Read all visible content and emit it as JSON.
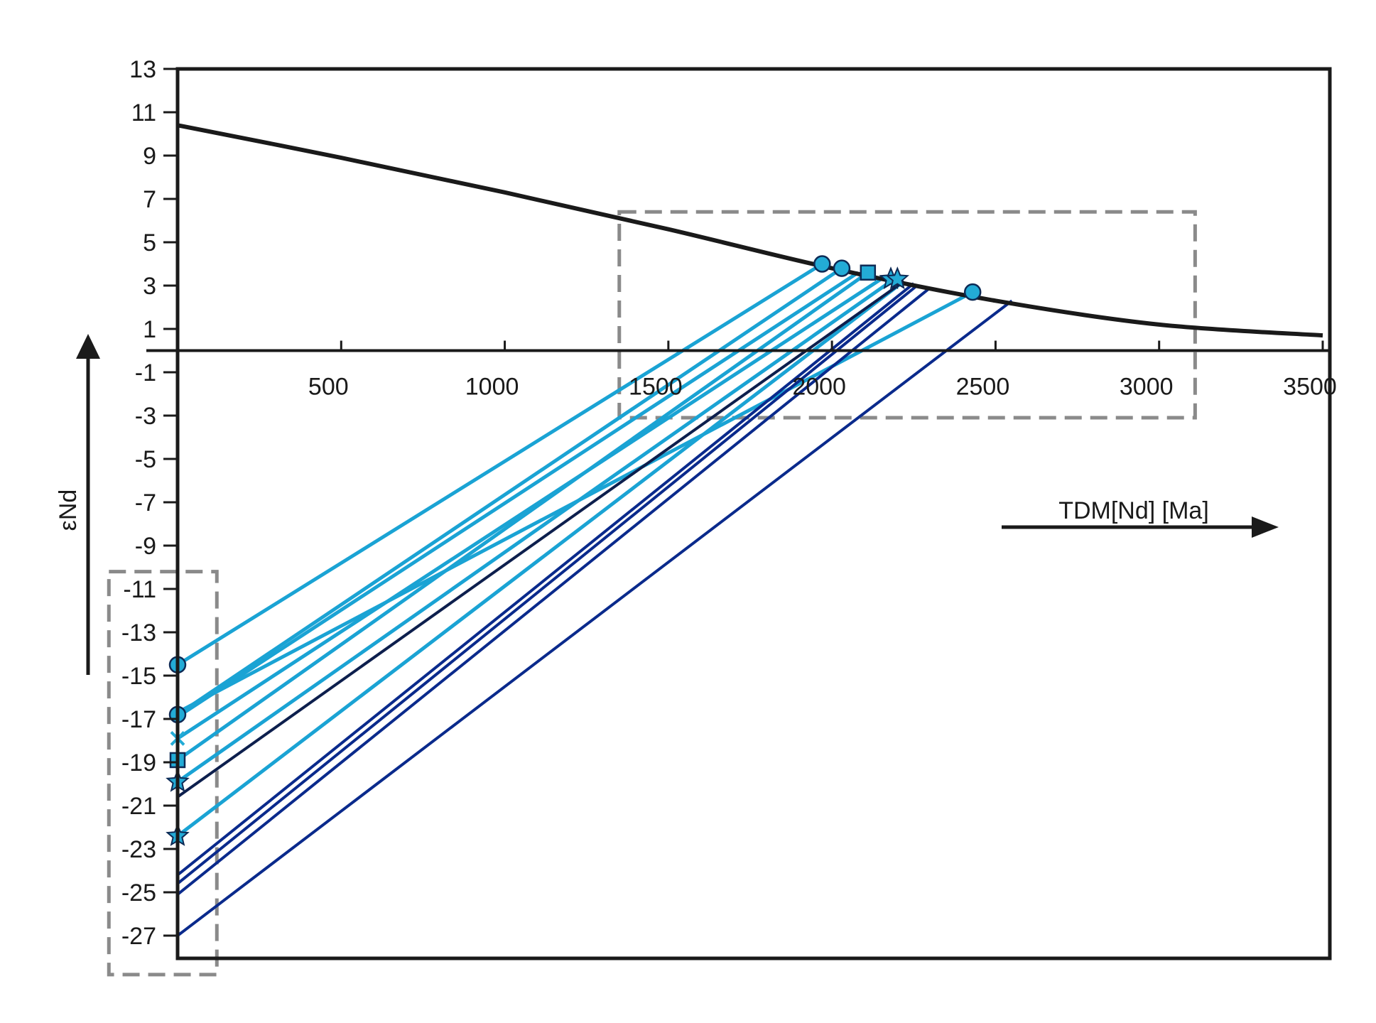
{
  "chart_data": {
    "type": "line",
    "xlabel": "TDM[Nd] [Ma]",
    "ylabel": "εNd",
    "xlim": [
      0,
      3500
    ],
    "ylim": [
      -28.5,
      13
    ],
    "x_ticks": [
      500,
      1000,
      1500,
      2000,
      2500,
      3000,
      3500
    ],
    "y_ticks": [
      13,
      11,
      9,
      7,
      5,
      3,
      1,
      -1,
      -3,
      -5,
      -7,
      -9,
      -11,
      -13,
      -15,
      -17,
      -19,
      -21,
      -23,
      -25,
      -27
    ],
    "grid": false,
    "legend": "none",
    "depleted_mantle_curve": {
      "x": [
        0,
        500,
        1000,
        1500,
        2000,
        2500,
        3000,
        3500
      ],
      "y": [
        10.4,
        8.9,
        7.3,
        5.6,
        3.8,
        2.3,
        1.2,
        0.7
      ],
      "color": "#1a1a1a"
    },
    "model_age_lines": [
      {
        "x": [
          0,
          1970
        ],
        "y": [
          -14.5,
          4.0
        ],
        "color": "#1aa3d4",
        "marker": "circle"
      },
      {
        "x": [
          0,
          2030
        ],
        "y": [
          -16.8,
          3.8
        ],
        "color": "#1aa3d4",
        "marker": "circle"
      },
      {
        "x": [
          0,
          2080
        ],
        "y": [
          -16.9,
          3.6
        ],
        "color": "#1aa3d4",
        "marker": "none"
      },
      {
        "x": [
          0,
          2150
        ],
        "y": [
          -17.9,
          3.3
        ],
        "color": "#1aa3d4",
        "marker": "x"
      },
      {
        "x": [
          0,
          2110
        ],
        "y": [
          -18.9,
          3.6
        ],
        "color": "#1aa3d4",
        "marker": "square"
      },
      {
        "x": [
          0,
          2190
        ],
        "y": [
          -19.9,
          3.3
        ],
        "color": "#1aa3d4",
        "marker": "star"
      },
      {
        "x": [
          0,
          2430
        ],
        "y": [
          -16.7,
          2.7
        ],
        "color": "#1aa3d4",
        "marker": "none"
      },
      {
        "x": [
          0,
          2220
        ],
        "y": [
          -22.4,
          3.2
        ],
        "color": "#1aa3d4",
        "marker": "star"
      },
      {
        "x": [
          0,
          2220
        ],
        "y": [
          -20.6,
          3.2
        ],
        "color": "#0d1f4d",
        "marker": "none"
      },
      {
        "x": [
          0,
          2250
        ],
        "y": [
          -24.2,
          3.1
        ],
        "color": "#0a2a8c",
        "marker": "none"
      },
      {
        "x": [
          0,
          2260
        ],
        "y": [
          -24.6,
          3.0
        ],
        "color": "#0a2a8c",
        "marker": "none"
      },
      {
        "x": [
          0,
          2300
        ],
        "y": [
          -25.1,
          2.9
        ],
        "color": "#0a2a8c",
        "marker": "none"
      },
      {
        "x": [
          0,
          2550
        ],
        "y": [
          -27.0,
          2.3
        ],
        "color": "#0a2a8c",
        "marker": "none"
      }
    ],
    "endpoint_markers": [
      {
        "x": 1970,
        "y": 4.0,
        "shape": "circle"
      },
      {
        "x": 2030,
        "y": 3.8,
        "shape": "circle"
      },
      {
        "x": 2110,
        "y": 3.6,
        "shape": "square"
      },
      {
        "x": 2180,
        "y": 3.3,
        "shape": "star"
      },
      {
        "x": 2200,
        "y": 3.3,
        "shape": "star"
      },
      {
        "x": 2430,
        "y": 2.7,
        "shape": "circle"
      },
      {
        "x": 0,
        "y": -14.5,
        "shape": "circle"
      },
      {
        "x": 0,
        "y": -16.8,
        "shape": "circle"
      },
      {
        "x": 0,
        "y": -17.9,
        "shape": "x"
      },
      {
        "x": 0,
        "y": -18.9,
        "shape": "square"
      },
      {
        "x": 0,
        "y": -19.9,
        "shape": "star"
      },
      {
        "x": 0,
        "y": -22.4,
        "shape": "star"
      }
    ],
    "highlight_boxes": [
      {
        "x": [
          1350,
          3110
        ],
        "y": [
          -3.1,
          6.4
        ]
      },
      {
        "x": [
          -210,
          120
        ],
        "y": [
          -28.8,
          -10.2
        ]
      }
    ],
    "colors": {
      "axis": "#1a1a1a",
      "light_series": "#1aa3d4",
      "dark_series": "#0a2a8c",
      "marker_fill": "#23abd6",
      "box": "#8a8a8a"
    }
  }
}
